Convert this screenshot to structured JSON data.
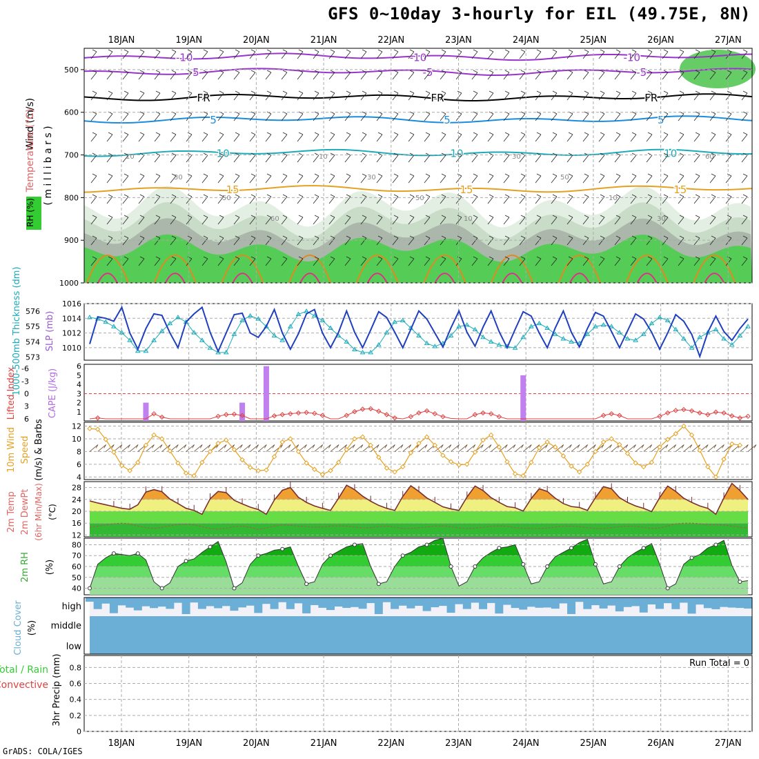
{
  "title": "GFS 0~10day 3-hourly for EIL (49.75E, 8N)",
  "credit": "GrADS: COLA/IGES",
  "dates": [
    "18JAN",
    "19JAN",
    "20JAN",
    "21JAN",
    "22JAN",
    "23JAN",
    "24JAN",
    "25JAN",
    "26JAN",
    "27JAN"
  ],
  "colors": {
    "green": "#33cc33",
    "grayline": "#999999",
    "dash": "#aaaaaa"
  },
  "chart_data": [
    {
      "type": "heatmap",
      "name": "upper-air",
      "ylabel_parts": [
        "RH (%)",
        "Temperature (°C)",
        "Wind (m/s)"
      ],
      "ylabel_unit": "( m i l l i b a r s )",
      "y_ticks": [
        500,
        600,
        700,
        800,
        900,
        1000
      ],
      "ylim": [
        1000,
        450
      ],
      "isotherms": [
        {
          "label": "-10",
          "pressure": 470,
          "color": "#9933cc"
        },
        {
          "label": "-5",
          "pressure": 505,
          "color": "#9933cc"
        },
        {
          "label": "FR",
          "pressure": 565,
          "color": "#000000"
        },
        {
          "label": "5",
          "pressure": 617,
          "color": "#1a8cdd"
        },
        {
          "label": "10",
          "pressure": 695,
          "color": "#1aaab8"
        },
        {
          "label": "15",
          "pressure": 780,
          "color": "#e6a020"
        }
      ],
      "contour_labels": [
        "10",
        "30",
        "50",
        "60",
        "10",
        "30",
        "50",
        "10",
        "30",
        "50",
        "10",
        "30",
        "60"
      ]
    },
    {
      "type": "line",
      "name": "slp-thickness",
      "ylabel_left": "1000-500mb Thickness (dm)",
      "ylabel_right": "SLP (mb)",
      "left_ticks": [
        573,
        574,
        575,
        576
      ],
      "right_ticks": [
        1010,
        1012,
        1014,
        1016
      ],
      "slp_range": [
        1008.3,
        1016
      ],
      "slp_values": [
        1010.5,
        1014.2,
        1014.0,
        1013.6,
        1015.5,
        1012.0,
        1009.8,
        1012.6,
        1014.6,
        1014.4,
        1012.0,
        1010.0,
        1013.5,
        1014.6,
        1015.5,
        1012.1,
        1009.5,
        1012.0,
        1014.5,
        1014.7,
        1012.0,
        1011.4,
        1012.9,
        1015.2,
        1012.0,
        1009.8,
        1011.9,
        1014.6,
        1015.2,
        1012.0,
        1010.0,
        1012.1,
        1015.0,
        1012.1,
        1010.0,
        1012.4,
        1014.9,
        1014.1,
        1012.1,
        1010.0,
        1012.5,
        1015.0,
        1013.9,
        1012.0,
        1010.1,
        1012.7,
        1015.0,
        1012.1,
        1010.2,
        1012.8,
        1015.0,
        1012.2,
        1010.0,
        1012.5,
        1014.9,
        1014.3,
        1012.0,
        1010.0,
        1012.7,
        1015.0,
        1012.1,
        1010.1,
        1012.6,
        1014.8,
        1014.3,
        1012.2,
        1010.0,
        1012.3,
        1014.6,
        1013.9,
        1012.1,
        1009.8,
        1012.0,
        1014.5,
        1013.6,
        1011.8,
        1008.8,
        1012.1,
        1014.3,
        1012.2,
        1011.0,
        1012.6,
        1013.9
      ],
      "thickness_values": [
        575.6,
        575.5,
        575.3,
        575.0,
        574.6,
        574.1,
        573.4,
        573.4,
        574.1,
        574.7,
        575.2,
        575.6,
        575.3,
        574.6,
        574.1,
        573.6,
        573.3,
        573.3,
        574.5,
        575.4,
        575.7,
        575.5,
        575.0,
        574.4,
        574.1,
        575.0,
        575.8,
        576.0,
        575.7,
        575.4,
        574.9,
        574.4,
        574.0,
        573.5,
        573.3,
        573.3,
        573.8,
        574.6,
        575.3,
        575.4,
        574.9,
        574.4,
        573.9,
        573.7,
        573.9,
        574.4,
        575.0,
        575.1,
        574.8,
        574.3,
        574.0,
        573.8,
        573.7,
        573.6,
        574.3,
        575.0,
        575.2,
        574.9,
        574.5,
        574.2,
        574.0,
        573.9,
        574.5,
        575.0,
        575.1,
        575.0,
        574.6,
        574.2,
        574.1,
        574.5,
        575.2,
        575.6,
        575.4,
        574.8,
        574.2,
        573.6,
        574.3,
        574.6,
        574.8,
        574.2,
        573.8,
        574.4,
        575.0
      ]
    },
    {
      "type": "bar",
      "name": "cape-li",
      "ylabel_left": "Lifted Index",
      "ylabel_right": "CAPE (J/kg)",
      "li_ticks": [
        "-6",
        "-3",
        "0",
        "3",
        "6"
      ],
      "cape_ticks": [
        "1",
        "2",
        "3",
        "4",
        "5",
        "6"
      ],
      "cape_bars": [
        {
          "index": 7,
          "value": 2
        },
        {
          "index": 19,
          "value": 2
        },
        {
          "index": 22,
          "value": 6
        },
        {
          "index": 54,
          "value": 5
        }
      ],
      "li_values": [
        6,
        5.8,
        6,
        6,
        6,
        6,
        6,
        6,
        4.8,
        5.6,
        6,
        6,
        6,
        6,
        6,
        6,
        5.4,
        5.0,
        4.9,
        5.2,
        6,
        6,
        6,
        5.3,
        5.0,
        4.8,
        4.6,
        4.5,
        4.7,
        5.2,
        6,
        6,
        5.2,
        4.3,
        3.7,
        3.6,
        4.2,
        5.0,
        5.8,
        6,
        5.5,
        4.6,
        4.1,
        4.8,
        5.5,
        5.9,
        6,
        6,
        5.0,
        4.6,
        4.8,
        5.5,
        6,
        6,
        6,
        6,
        6,
        6,
        6,
        6,
        6,
        6,
        6,
        6,
        5.2,
        4.8,
        5.2,
        6,
        6,
        6,
        6,
        5.4,
        4.6,
        4.0,
        3.8,
        4.1,
        4.6,
        5.0,
        4.4,
        4.6,
        5.3,
        5.8,
        5.4
      ]
    },
    {
      "type": "line",
      "name": "wind10m",
      "ylabel": [
        "10m Wind",
        "Speed",
        "(m/s) & Barbs"
      ],
      "y_ticks": [
        4,
        6,
        8,
        10,
        12
      ],
      "ylim": [
        3.6,
        12.6
      ],
      "values": [
        11.6,
        11.5,
        9.9,
        7.9,
        5.8,
        5.0,
        6.3,
        9.0,
        10.6,
        10.0,
        8.1,
        6.2,
        4.6,
        4.2,
        6.3,
        8.0,
        9.3,
        9.8,
        8.3,
        6.7,
        5.5,
        5.0,
        5.1,
        7.2,
        9.5,
        10.0,
        8.0,
        6.2,
        5.2,
        4.4,
        5.0,
        6.3,
        8.3,
        10.0,
        10.3,
        9.0,
        7.1,
        5.4,
        4.8,
        5.6,
        7.8,
        9.3,
        10.3,
        9.0,
        7.4,
        6.4,
        5.9,
        6.0,
        7.9,
        9.8,
        10.6,
        8.7,
        6.4,
        4.5,
        4.2,
        6.3,
        8.6,
        9.5,
        8.7,
        7.3,
        5.7,
        4.8,
        6.0,
        8.0,
        9.5,
        10.0,
        9.1,
        7.7,
        6.2,
        5.6,
        6.3,
        8.7,
        9.9,
        10.8,
        12.0,
        10.6,
        8.2,
        5.6,
        4.0,
        6.8,
        9.2,
        9.0
      ]
    },
    {
      "type": "area",
      "name": "temp2m",
      "ylabel": [
        "2m Temp",
        "2m DewPt",
        "(6hr Min/Max)",
        "(°C)"
      ],
      "y_ticks": [
        12,
        16,
        20,
        24,
        28
      ],
      "ylim": [
        11.4,
        30
      ],
      "temp_values": [
        23.5,
        22.8,
        22.2,
        21.6,
        21.0,
        20.7,
        22.2,
        26.5,
        27.3,
        26.6,
        24.1,
        22.6,
        21.0,
        20.3,
        19.0,
        24.2,
        26.7,
        26.3,
        23.7,
        22.5,
        21.4,
        20.6,
        19.0,
        23.8,
        27.1,
        28.0,
        24.7,
        23.0,
        21.8,
        21.0,
        20.3,
        24.4,
        28.8,
        27.3,
        25.1,
        23.4,
        22.0,
        21.0,
        20.3,
        25.0,
        28.6,
        26.7,
        24.5,
        23.0,
        21.5,
        20.8,
        20.3,
        24.8,
        28.5,
        27.0,
        24.6,
        23.0,
        21.6,
        21.2,
        20.1,
        24.3,
        27.6,
        26.7,
        24.4,
        22.6,
        21.6,
        21.3,
        20.3,
        24.6,
        28.3,
        27.6,
        24.6,
        23.0,
        21.8,
        21.0,
        19.9,
        24.6,
        28.5,
        26.7,
        24.4,
        23.0,
        21.8,
        21.0,
        19.0,
        24.5,
        29.4,
        27.0,
        24.0
      ],
      "dew_values": [
        14.6,
        15.0,
        15.4,
        15.8,
        16.0,
        15.8,
        15.0,
        14.5,
        14.2,
        14.6,
        15.2,
        15.5,
        15.7,
        15.4,
        14.8,
        14.2,
        14.0,
        14.3,
        14.8,
        15.0,
        14.6,
        13.9,
        14.4,
        15.0,
        15.4,
        15.3,
        15.0,
        14.8,
        14.6,
        14.7,
        15.0,
        15.1,
        15.0,
        14.7,
        14.4,
        14.5,
        14.8,
        15.0,
        14.7,
        14.2,
        14.2,
        14.5,
        14.7,
        15.0,
        15.1,
        14.8,
        14.4,
        14.2,
        14.3,
        14.6,
        14.9,
        15.1,
        14.9,
        14.5,
        14.3,
        14.2,
        14.2,
        14.4,
        14.7,
        15.0,
        15.0,
        14.8,
        14.5,
        14.2,
        14.2,
        14.5,
        14.8,
        15.0,
        14.9,
        14.6,
        14.2,
        14.4,
        15.0,
        15.8,
        16.0,
        16.0,
        15.8,
        15.5,
        15.5,
        15.4,
        15.0,
        14.6,
        14.4
      ]
    },
    {
      "type": "area",
      "name": "rh2m",
      "ylabel": [
        "2m RH",
        "(%)"
      ],
      "y_ticks": [
        40,
        50,
        60,
        70,
        80
      ],
      "ylim": [
        34,
        86
      ],
      "values": [
        40,
        62,
        68,
        72,
        71,
        70,
        72,
        66,
        46,
        40,
        45,
        60,
        65,
        67,
        73,
        78,
        83,
        64,
        40,
        45,
        62,
        70,
        72,
        75,
        76,
        78,
        60,
        44,
        46,
        62,
        70,
        74,
        78,
        80,
        81,
        60,
        44,
        46,
        60,
        70,
        73,
        78,
        80,
        84,
        86,
        60,
        42,
        46,
        60,
        68,
        73,
        77,
        78,
        80,
        62,
        44,
        46,
        60,
        69,
        73,
        77,
        82,
        85,
        62,
        44,
        46,
        60,
        68,
        73,
        77,
        81,
        62,
        40,
        44,
        62,
        68,
        71,
        77,
        80,
        84,
        61,
        46,
        47
      ]
    },
    {
      "type": "bar",
      "name": "cloud-cover",
      "ylabel": [
        "Cloud Cover",
        "(%)"
      ],
      "levels": [
        "high",
        "middle",
        "low"
      ]
    },
    {
      "type": "bar",
      "name": "precip",
      "ylabel_parts": [
        "Total / Rain",
        "Convective",
        "3hr Precip (mm)"
      ],
      "y_ticks": [
        "0",
        "0.2",
        "0.4",
        "0.6",
        "0.8"
      ],
      "ylim": [
        0,
        0.95
      ],
      "run_total_label": "Run Total = 0",
      "values": []
    }
  ]
}
